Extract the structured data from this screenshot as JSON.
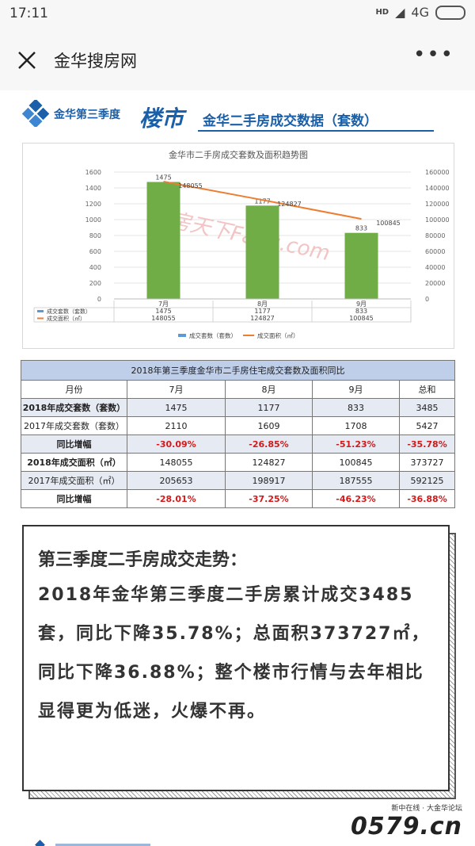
{
  "status_bar": {
    "time": "17:11",
    "network": "4G",
    "hd": "HD"
  },
  "nav": {
    "title": "金华搜房网"
  },
  "banner": {
    "logo_text": "金华第三季度",
    "section_text": "楼市",
    "title": "金华二手房成交数据（套数）"
  },
  "chart_data": {
    "type": "bar",
    "title": "金华市二手房成交套数及面积趋势图",
    "categories": [
      "7月",
      "8月",
      "9月"
    ],
    "series": [
      {
        "name": "成交套数（套数）",
        "type": "bar",
        "axis": "left",
        "values": [
          1475,
          1177,
          833
        ]
      },
      {
        "name": "成交面积（㎡）",
        "type": "line",
        "axis": "right",
        "values": [
          148055,
          124827,
          100845
        ]
      }
    ],
    "y_left_ticks": [
      "1600",
      "1400",
      "1200",
      "1000",
      "800",
      "600",
      "400",
      "200",
      "0"
    ],
    "y_right_ticks": [
      "160000",
      "140000",
      "120000",
      "100000",
      "80000",
      "60000",
      "40000",
      "20000",
      "0"
    ],
    "ylim_left": [
      0,
      1600
    ],
    "ylim_right": [
      0,
      160000
    ],
    "watermark": "房天下Fang.com",
    "colors": {
      "bar": "#70ad47",
      "line": "#ed7d31",
      "legend_bar": "#5b9bd5"
    }
  },
  "table": {
    "caption": "2018年第三季度金华市二手房住宅成交套数及面积同比",
    "headers": [
      "月份",
      "7月",
      "8月",
      "9月",
      "总和"
    ],
    "rows": [
      [
        "2018年成交套数（套数）",
        "1475",
        "1177",
        "833",
        "3485"
      ],
      [
        "2017年成交套数（套数）",
        "2110",
        "1609",
        "1708",
        "5427"
      ],
      [
        "同比增幅",
        "-30.09%",
        "-26.85%",
        "-51.23%",
        "-35.78%"
      ],
      [
        "2018年成交面积（㎡）",
        "148055",
        "124827",
        "100845",
        "373727"
      ],
      [
        "2017年成交面积（㎡）",
        "205653",
        "198917",
        "187555",
        "592125"
      ],
      [
        "同比增幅",
        "-28.01%",
        "-37.25%",
        "-46.23%",
        "-36.88%"
      ]
    ]
  },
  "summary": {
    "heading": "第三季度二手房成交走势：",
    "body": "2018年金华第三季度二手房累计成交3485套，同比下降35.78%；总面积373727㎡，同比下降36.88%；整个楼市行情与去年相比显得更为低迷，火爆不再。"
  },
  "footer": {
    "small": "新中在线 · 大金华论坛",
    "big": "0579.cn"
  }
}
